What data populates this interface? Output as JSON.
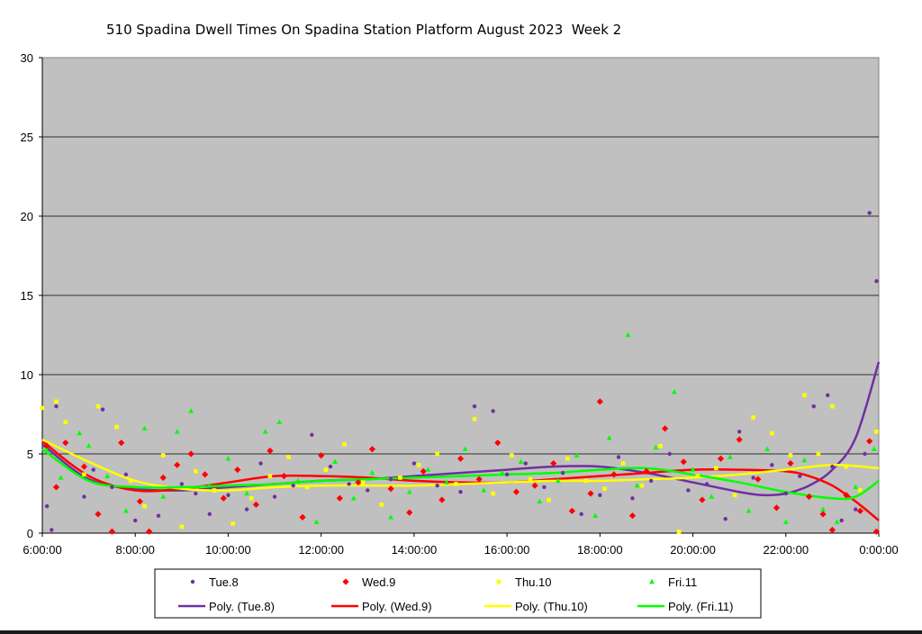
{
  "chart_data": {
    "type": "scatter",
    "title": "510 Spadina Dwell Times On Spadina Station Platform August 2023  Week 2",
    "xlabel": "",
    "ylabel": "",
    "x_unit": "hours since midnight, axis printed as h:mm:ss",
    "xlim": [
      6,
      24
    ],
    "ylim": [
      0,
      30
    ],
    "y_ticks": [
      "0",
      "5",
      "10",
      "15",
      "20",
      "25",
      "30"
    ],
    "x_ticks": [
      "6:00:00",
      "8:00:00",
      "10:00:00",
      "12:00:00",
      "14:00:00",
      "16:00:00",
      "18:00:00",
      "20:00:00",
      "22:00:00",
      "0:00:00"
    ],
    "grid": "horizontal",
    "plot_background": "#c0c0c0",
    "legend_position": "bottom",
    "legend": {
      "row1": [
        "Tue.8",
        "Wed.9",
        "Thu.10",
        "Fri.11"
      ],
      "row2": [
        "Poly. (Tue.8)",
        "Poly. (Wed.9)",
        "Poly. (Thu.10)",
        "Poly. (Fri.11)"
      ]
    },
    "series": [
      {
        "name": "Tue.8",
        "marker": "circle",
        "color": "#7030a0",
        "points": [
          [
            6.1,
            1.7
          ],
          [
            6.2,
            0.2
          ],
          [
            6.3,
            8.0
          ],
          [
            6.9,
            2.3
          ],
          [
            7.1,
            4.0
          ],
          [
            7.3,
            7.8
          ],
          [
            7.5,
            2.9
          ],
          [
            7.8,
            3.7
          ],
          [
            8.0,
            0.8
          ],
          [
            8.5,
            1.1
          ],
          [
            9.0,
            3.1
          ],
          [
            9.3,
            2.5
          ],
          [
            9.6,
            1.2
          ],
          [
            10.0,
            2.4
          ],
          [
            10.4,
            1.5
          ],
          [
            10.7,
            4.4
          ],
          [
            11.0,
            2.3
          ],
          [
            11.4,
            3.0
          ],
          [
            11.8,
            6.2
          ],
          [
            12.2,
            4.2
          ],
          [
            12.6,
            3.1
          ],
          [
            13.0,
            2.7
          ],
          [
            13.5,
            3.4
          ],
          [
            14.0,
            4.4
          ],
          [
            14.5,
            3.0
          ],
          [
            15.0,
            2.6
          ],
          [
            15.3,
            8.0
          ],
          [
            15.7,
            7.7
          ],
          [
            16.0,
            3.7
          ],
          [
            16.4,
            4.4
          ],
          [
            16.8,
            2.9
          ],
          [
            17.2,
            3.8
          ],
          [
            17.6,
            1.2
          ],
          [
            18.0,
            2.4
          ],
          [
            18.4,
            4.8
          ],
          [
            18.7,
            2.2
          ],
          [
            19.1,
            3.3
          ],
          [
            19.5,
            5.0
          ],
          [
            19.9,
            2.7
          ],
          [
            20.3,
            3.1
          ],
          [
            20.7,
            0.9
          ],
          [
            21.0,
            6.4
          ],
          [
            21.3,
            3.5
          ],
          [
            21.7,
            4.3
          ],
          [
            22.0,
            2.5
          ],
          [
            22.3,
            3.6
          ],
          [
            22.6,
            8.0
          ],
          [
            22.9,
            8.7
          ],
          [
            23.0,
            4.2
          ],
          [
            23.2,
            0.8
          ],
          [
            23.5,
            1.5
          ],
          [
            23.7,
            5.0
          ],
          [
            23.8,
            20.2
          ],
          [
            23.95,
            15.9
          ]
        ]
      },
      {
        "name": "Wed.9",
        "marker": "diamond",
        "color": "#ff0000",
        "points": [
          [
            6.1,
            5.5
          ],
          [
            6.3,
            2.9
          ],
          [
            6.5,
            5.7
          ],
          [
            6.9,
            4.2
          ],
          [
            7.2,
            1.2
          ],
          [
            7.5,
            0.1
          ],
          [
            7.7,
            5.7
          ],
          [
            8.1,
            2.0
          ],
          [
            8.3,
            0.1
          ],
          [
            8.6,
            3.5
          ],
          [
            8.9,
            4.3
          ],
          [
            9.2,
            5.0
          ],
          [
            9.5,
            3.7
          ],
          [
            9.9,
            2.2
          ],
          [
            10.2,
            4.0
          ],
          [
            10.6,
            1.8
          ],
          [
            10.9,
            5.2
          ],
          [
            11.2,
            3.6
          ],
          [
            11.6,
            1.0
          ],
          [
            12.0,
            4.9
          ],
          [
            12.4,
            2.2
          ],
          [
            12.8,
            3.2
          ],
          [
            13.1,
            5.3
          ],
          [
            13.5,
            2.8
          ],
          [
            13.9,
            1.3
          ],
          [
            14.2,
            3.9
          ],
          [
            14.6,
            2.1
          ],
          [
            15.0,
            4.7
          ],
          [
            15.4,
            3.4
          ],
          [
            15.8,
            5.7
          ],
          [
            16.2,
            2.6
          ],
          [
            16.6,
            3.0
          ],
          [
            17.0,
            4.4
          ],
          [
            17.4,
            1.4
          ],
          [
            17.8,
            2.5
          ],
          [
            18.0,
            8.3
          ],
          [
            18.3,
            3.7
          ],
          [
            18.7,
            1.1
          ],
          [
            19.0,
            3.9
          ],
          [
            19.4,
            6.6
          ],
          [
            19.8,
            4.5
          ],
          [
            20.2,
            2.1
          ],
          [
            20.6,
            4.7
          ],
          [
            21.0,
            5.9
          ],
          [
            21.4,
            3.4
          ],
          [
            21.8,
            1.6
          ],
          [
            22.1,
            4.4
          ],
          [
            22.5,
            2.3
          ],
          [
            22.8,
            1.2
          ],
          [
            23.0,
            0.2
          ],
          [
            23.3,
            2.4
          ],
          [
            23.6,
            1.4
          ],
          [
            23.8,
            5.8
          ],
          [
            23.95,
            0.1
          ]
        ]
      },
      {
        "name": "Thu.10",
        "marker": "square",
        "color": "#ffff00",
        "points": [
          [
            6.0,
            7.9
          ],
          [
            6.3,
            8.3
          ],
          [
            6.5,
            7.0
          ],
          [
            6.9,
            3.7
          ],
          [
            7.2,
            8.0
          ],
          [
            7.6,
            6.7
          ],
          [
            7.9,
            3.3
          ],
          [
            8.2,
            1.7
          ],
          [
            8.6,
            4.9
          ],
          [
            9.0,
            0.4
          ],
          [
            9.3,
            3.9
          ],
          [
            9.7,
            2.7
          ],
          [
            10.1,
            0.6
          ],
          [
            10.5,
            2.2
          ],
          [
            10.9,
            3.6
          ],
          [
            11.3,
            4.8
          ],
          [
            11.7,
            2.9
          ],
          [
            12.1,
            4.0
          ],
          [
            12.5,
            5.6
          ],
          [
            12.9,
            3.2
          ],
          [
            13.3,
            1.8
          ],
          [
            13.7,
            3.5
          ],
          [
            14.1,
            4.3
          ],
          [
            14.5,
            5.0
          ],
          [
            14.9,
            3.1
          ],
          [
            15.3,
            7.2
          ],
          [
            15.7,
            2.5
          ],
          [
            16.1,
            4.9
          ],
          [
            16.5,
            3.4
          ],
          [
            16.9,
            2.1
          ],
          [
            17.3,
            4.7
          ],
          [
            17.7,
            3.3
          ],
          [
            18.1,
            2.8
          ],
          [
            18.5,
            4.4
          ],
          [
            18.9,
            3.0
          ],
          [
            19.3,
            5.5
          ],
          [
            19.7,
            0.1
          ],
          [
            20.1,
            3.6
          ],
          [
            20.5,
            4.1
          ],
          [
            20.9,
            2.4
          ],
          [
            21.3,
            7.3
          ],
          [
            21.7,
            6.3
          ],
          [
            22.1,
            4.9
          ],
          [
            22.4,
            8.7
          ],
          [
            22.7,
            5.0
          ],
          [
            23.0,
            8.0
          ],
          [
            23.3,
            4.2
          ],
          [
            23.6,
            2.7
          ],
          [
            23.95,
            6.4
          ]
        ]
      },
      {
        "name": "Fri.11",
        "marker": "triangle",
        "color": "#00ff00",
        "points": [
          [
            6.1,
            5.2
          ],
          [
            6.4,
            3.5
          ],
          [
            6.8,
            6.3
          ],
          [
            7.0,
            5.5
          ],
          [
            7.4,
            3.6
          ],
          [
            7.8,
            1.4
          ],
          [
            8.2,
            6.6
          ],
          [
            8.6,
            2.3
          ],
          [
            8.9,
            6.4
          ],
          [
            9.2,
            7.7
          ],
          [
            9.6,
            3.0
          ],
          [
            10.0,
            4.7
          ],
          [
            10.4,
            2.5
          ],
          [
            10.8,
            6.4
          ],
          [
            11.1,
            7.0
          ],
          [
            11.5,
            3.3
          ],
          [
            11.9,
            0.7
          ],
          [
            12.3,
            4.5
          ],
          [
            12.7,
            2.2
          ],
          [
            13.1,
            3.8
          ],
          [
            13.5,
            1.0
          ],
          [
            13.9,
            2.6
          ],
          [
            14.3,
            4.0
          ],
          [
            14.7,
            3.2
          ],
          [
            15.1,
            5.3
          ],
          [
            15.5,
            2.7
          ],
          [
            15.9,
            3.8
          ],
          [
            16.3,
            4.5
          ],
          [
            16.7,
            2.0
          ],
          [
            17.1,
            3.3
          ],
          [
            17.5,
            4.9
          ],
          [
            17.9,
            1.1
          ],
          [
            18.2,
            6.0
          ],
          [
            18.6,
            12.5
          ],
          [
            18.8,
            3.0
          ],
          [
            19.2,
            5.4
          ],
          [
            19.6,
            8.9
          ],
          [
            20.0,
            4.0
          ],
          [
            20.4,
            2.3
          ],
          [
            20.8,
            4.8
          ],
          [
            21.2,
            1.4
          ],
          [
            21.6,
            5.3
          ],
          [
            22.0,
            0.7
          ],
          [
            22.4,
            4.6
          ],
          [
            22.8,
            1.5
          ],
          [
            23.1,
            0.7
          ],
          [
            23.5,
            2.9
          ],
          [
            23.9,
            5.3
          ]
        ]
      }
    ],
    "trendlines": [
      {
        "name": "Poly. (Tue.8)",
        "color": "#7030a0",
        "points": [
          [
            6,
            5.6
          ],
          [
            7,
            3.4
          ],
          [
            8,
            2.8
          ],
          [
            9,
            2.7
          ],
          [
            10,
            2.9
          ],
          [
            11,
            3.1
          ],
          [
            12,
            3.3
          ],
          [
            13,
            3.4
          ],
          [
            14,
            3.6
          ],
          [
            15,
            3.8
          ],
          [
            16,
            4.0
          ],
          [
            17,
            4.2
          ],
          [
            18,
            4.2
          ],
          [
            19,
            3.8
          ],
          [
            20,
            3.2
          ],
          [
            21,
            2.6
          ],
          [
            21.5,
            2.4
          ],
          [
            22,
            2.5
          ],
          [
            22.5,
            3.0
          ],
          [
            23,
            4.0
          ],
          [
            23.5,
            6.0
          ],
          [
            24,
            10.8
          ]
        ]
      },
      {
        "name": "Poly. (Wed.9)",
        "color": "#ff0000",
        "points": [
          [
            6,
            5.8
          ],
          [
            7,
            3.6
          ],
          [
            8,
            2.7
          ],
          [
            9,
            2.8
          ],
          [
            10,
            3.2
          ],
          [
            11,
            3.6
          ],
          [
            12,
            3.6
          ],
          [
            13,
            3.5
          ],
          [
            14,
            3.3
          ],
          [
            15,
            3.2
          ],
          [
            16,
            3.2
          ],
          [
            17,
            3.4
          ],
          [
            18,
            3.6
          ],
          [
            19,
            3.8
          ],
          [
            20,
            4.0
          ],
          [
            21,
            4.0
          ],
          [
            22,
            3.9
          ],
          [
            22.5,
            3.6
          ],
          [
            23,
            3.0
          ],
          [
            23.5,
            2.0
          ],
          [
            24,
            0.8
          ]
        ]
      },
      {
        "name": "Poly. (Thu.10)",
        "color": "#ffff00",
        "points": [
          [
            6,
            5.9
          ],
          [
            7,
            4.5
          ],
          [
            8,
            3.3
          ],
          [
            9,
            2.8
          ],
          [
            10,
            2.7
          ],
          [
            11,
            2.9
          ],
          [
            12,
            3.0
          ],
          [
            13,
            3.0
          ],
          [
            14,
            3.0
          ],
          [
            15,
            3.1
          ],
          [
            16,
            3.2
          ],
          [
            17,
            3.3
          ],
          [
            18,
            3.3
          ],
          [
            19,
            3.4
          ],
          [
            20,
            3.5
          ],
          [
            21,
            3.7
          ],
          [
            22,
            4.0
          ],
          [
            23,
            4.3
          ],
          [
            24,
            4.1
          ]
        ]
      },
      {
        "name": "Poly. (Fri.11)",
        "color": "#00ff00",
        "points": [
          [
            6,
            5.3
          ],
          [
            7,
            3.3
          ],
          [
            8,
            2.9
          ],
          [
            9,
            2.9
          ],
          [
            10,
            3.0
          ],
          [
            11,
            3.1
          ],
          [
            12,
            3.3
          ],
          [
            13,
            3.4
          ],
          [
            14,
            3.5
          ],
          [
            15,
            3.6
          ],
          [
            16,
            3.7
          ],
          [
            17,
            3.8
          ],
          [
            18,
            4.0
          ],
          [
            19,
            4.1
          ],
          [
            20,
            3.7
          ],
          [
            21,
            3.2
          ],
          [
            22,
            2.6
          ],
          [
            23,
            2.2
          ],
          [
            23.5,
            2.3
          ],
          [
            24,
            3.3
          ]
        ]
      }
    ]
  }
}
